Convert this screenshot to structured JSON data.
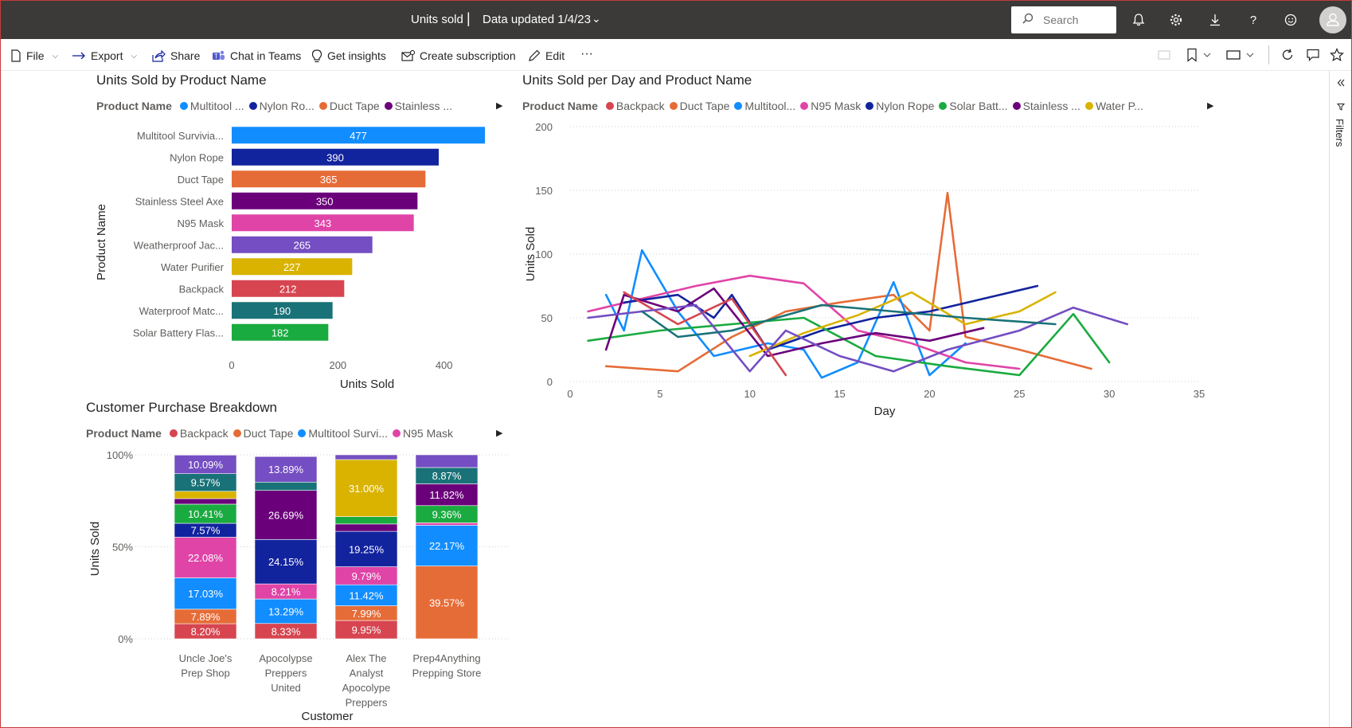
{
  "header": {
    "title": "Units sold",
    "separator": "|",
    "data_updated": "Data updated 1/4/23",
    "search_placeholder": "Search"
  },
  "commandbar": {
    "file": "File",
    "export": "Export",
    "share": "Share",
    "chat": "Chat in Teams",
    "insights": "Get insights",
    "subscription": "Create subscription",
    "edit": "Edit",
    "more": "···"
  },
  "filters_label": "Filters",
  "colors": {
    "multitool": "#118DFF",
    "nylon": "#12239E",
    "duct": "#E66C37",
    "axe": "#6B007B",
    "n95": "#E044A7",
    "jacket": "#744EC2",
    "water": "#D9B300",
    "backpack": "#D64550",
    "matches": "#197278",
    "solar": "#1AAB40"
  },
  "bar_chart": {
    "title": "Units Sold by Product Name",
    "legend_title": "Product Name",
    "legend": [
      {
        "label": "Multitool ...",
        "color": "#118DFF"
      },
      {
        "label": "Nylon Ro...",
        "color": "#12239E"
      },
      {
        "label": "Duct Tape",
        "color": "#E66C37"
      },
      {
        "label": "Stainless ...",
        "color": "#6B007B"
      }
    ]
  },
  "line_chart": {
    "title": "Units Sold per Day and Product Name",
    "legend_title": "Product Name",
    "legend": [
      {
        "label": "Backpack",
        "color": "#D64550"
      },
      {
        "label": "Duct Tape",
        "color": "#E66C37"
      },
      {
        "label": "Multitool...",
        "color": "#118DFF"
      },
      {
        "label": "N95 Mask",
        "color": "#E044A7"
      },
      {
        "label": "Nylon Rope",
        "color": "#12239E"
      },
      {
        "label": "Solar Batt...",
        "color": "#1AAB40"
      },
      {
        "label": "Stainless ...",
        "color": "#6B007B"
      },
      {
        "label": "Water P...",
        "color": "#D9B300"
      }
    ]
  },
  "stack_chart": {
    "title": "Customer Purchase Breakdown",
    "legend_title": "Product Name",
    "legend": [
      {
        "label": "Backpack",
        "color": "#D64550"
      },
      {
        "label": "Duct Tape",
        "color": "#E66C37"
      },
      {
        "label": "Multitool Survi...",
        "color": "#118DFF"
      },
      {
        "label": "N95 Mask",
        "color": "#E044A7"
      }
    ]
  },
  "chart_data": [
    {
      "type": "bar",
      "orientation": "horizontal",
      "title": "Units Sold by Product Name",
      "xlabel": "Units Sold",
      "ylabel": "Product Name",
      "xlim": [
        0,
        480
      ],
      "xticks": [
        "0",
        "200",
        "400"
      ],
      "xtick_values": [
        0,
        200,
        400
      ],
      "categories": [
        "Multitool Survivia...",
        "Nylon Rope",
        "Duct Tape",
        "Stainless Steel Axe",
        "N95 Mask",
        "Weatherproof Jac...",
        "Water Purifier",
        "Backpack",
        "Waterproof Matc...",
        "Solar Battery Flas..."
      ],
      "values": [
        477,
        390,
        365,
        350,
        343,
        265,
        227,
        212,
        190,
        182
      ],
      "colors": [
        "#118DFF",
        "#12239E",
        "#E66C37",
        "#6B007B",
        "#E044A7",
        "#744EC2",
        "#D9B300",
        "#D64550",
        "#197278",
        "#1AAB40"
      ],
      "grid": false
    },
    {
      "type": "line",
      "title": "Units Sold per Day and Product Name",
      "xlabel": "Day",
      "ylabel": "Units Sold",
      "xlim": [
        0,
        35
      ],
      "ylim": [
        0,
        200
      ],
      "xticks": [
        "0",
        "5",
        "10",
        "15",
        "20",
        "25",
        "30",
        "35"
      ],
      "xtick_values": [
        0,
        5,
        10,
        15,
        20,
        25,
        30,
        35
      ],
      "yticks": [
        "0",
        "50",
        "100",
        "150",
        "200"
      ],
      "ytick_values": [
        0,
        50,
        100,
        150,
        200
      ],
      "grid": true,
      "series": [
        {
          "name": "Duct Tape",
          "color": "#E66C37",
          "x": [
            2,
            6,
            9,
            12,
            15,
            18,
            20,
            21,
            22,
            25,
            29
          ],
          "y": [
            12,
            8,
            35,
            55,
            62,
            68,
            40,
            148,
            35,
            25,
            10
          ]
        },
        {
          "name": "Multitool Survivia...",
          "color": "#118DFF",
          "x": [
            2,
            3,
            4,
            6,
            8,
            11,
            13,
            14,
            16,
            18,
            20,
            22
          ],
          "y": [
            68,
            40,
            103,
            55,
            20,
            30,
            25,
            3,
            15,
            78,
            5,
            30
          ]
        },
        {
          "name": "N95 Mask",
          "color": "#E044A7",
          "x": [
            1,
            4,
            7,
            10,
            13,
            16,
            19,
            22,
            25
          ],
          "y": [
            55,
            65,
            75,
            83,
            77,
            40,
            30,
            15,
            10
          ]
        },
        {
          "name": "Nylon Rope",
          "color": "#12239E",
          "x": [
            3,
            6,
            8,
            9,
            11,
            14,
            17,
            20,
            23,
            26
          ],
          "y": [
            62,
            68,
            50,
            68,
            25,
            40,
            50,
            55,
            65,
            75
          ]
        },
        {
          "name": "Solar Battery Flas...",
          "color": "#1AAB40",
          "x": [
            1,
            5,
            9,
            13,
            17,
            21,
            25,
            28,
            30
          ],
          "y": [
            32,
            40,
            45,
            50,
            20,
            12,
            5,
            53,
            15
          ]
        },
        {
          "name": "Stainless Steel Axe",
          "color": "#6B007B",
          "x": [
            2,
            3,
            6,
            8,
            11,
            14,
            17,
            20,
            23
          ],
          "y": [
            25,
            68,
            55,
            73,
            20,
            30,
            38,
            32,
            42
          ]
        },
        {
          "name": "Water Purifier",
          "color": "#D9B300",
          "x": [
            10,
            13,
            16,
            19,
            22,
            25,
            27
          ],
          "y": [
            20,
            38,
            52,
            70,
            45,
            55,
            70
          ]
        },
        {
          "name": "Backpack",
          "color": "#D64550",
          "x": [
            3,
            6,
            9,
            12
          ],
          "y": [
            70,
            45,
            65,
            5
          ]
        },
        {
          "name": "Weatherproof Jac...",
          "color": "#744EC2",
          "x": [
            1,
            4,
            7,
            10,
            12,
            15,
            18,
            21,
            25,
            28,
            31
          ],
          "y": [
            50,
            55,
            60,
            8,
            40,
            20,
            8,
            25,
            40,
            58,
            45
          ]
        },
        {
          "name": "Waterproof Matc...",
          "color": "#197278",
          "x": [
            4,
            6,
            9,
            14,
            18,
            22,
            27
          ],
          "y": [
            55,
            35,
            40,
            60,
            55,
            50,
            45
          ]
        }
      ]
    },
    {
      "type": "bar",
      "stacked": "percent",
      "title": "Customer Purchase Breakdown",
      "xlabel": "Customer",
      "ylabel": "Units Sold",
      "ylim": [
        0,
        100
      ],
      "yticks": [
        "0%",
        "50%",
        "100%"
      ],
      "ytick_values": [
        0,
        50,
        100
      ],
      "categories": [
        [
          "Uncle Joe's",
          "Prep Shop"
        ],
        [
          "Apocolypse",
          "Preppers",
          "United"
        ],
        [
          "Alex The",
          "Analyst",
          "Apocolype",
          "Preppers"
        ],
        [
          "Prep4Anything",
          "Prepping Store"
        ]
      ],
      "stacks": [
        [
          {
            "product": "Backpack",
            "color": "#D64550",
            "value": 8.2,
            "label": "8.20%"
          },
          {
            "product": "Duct Tape",
            "color": "#E66C37",
            "value": 7.89,
            "label": "7.89%"
          },
          {
            "product": "Multitool",
            "color": "#118DFF",
            "value": 17.03,
            "label": "17.03%"
          },
          {
            "product": "N95 Mask",
            "color": "#E044A7",
            "value": 22.08,
            "label": "22.08%"
          },
          {
            "product": "Nylon Rope",
            "color": "#12239E",
            "value": 7.57,
            "label": "7.57%"
          },
          {
            "product": "Solar Battery",
            "color": "#1AAB40",
            "value": 10.41,
            "label": "10.41%"
          },
          {
            "product": "Stainless Steel Axe",
            "color": "#6B007B",
            "value": 3.0,
            "label": ""
          },
          {
            "product": "Water Purifier",
            "color": "#D9B300",
            "value": 4.0,
            "label": ""
          },
          {
            "product": "Waterproof Matches",
            "color": "#197278",
            "value": 9.57,
            "label": "9.57%"
          },
          {
            "product": "Weatherproof Jacket",
            "color": "#744EC2",
            "value": 10.09,
            "label": "10.09%"
          }
        ],
        [
          {
            "product": "Backpack",
            "color": "#D64550",
            "value": 8.33,
            "label": "8.33%"
          },
          {
            "product": "Multitool",
            "color": "#118DFF",
            "value": 13.29,
            "label": "13.29%"
          },
          {
            "product": "N95 Mask",
            "color": "#E044A7",
            "value": 8.21,
            "label": "8.21%"
          },
          {
            "product": "Nylon Rope",
            "color": "#12239E",
            "value": 24.15,
            "label": "24.15%"
          },
          {
            "product": "Stainless Steel Axe",
            "color": "#6B007B",
            "value": 26.69,
            "label": "26.69%"
          },
          {
            "product": "Waterproof Matches",
            "color": "#197278",
            "value": 4.5,
            "label": ""
          },
          {
            "product": "Weatherproof Jacket",
            "color": "#744EC2",
            "value": 13.89,
            "label": "13.89%"
          }
        ],
        [
          {
            "product": "Backpack",
            "color": "#D64550",
            "value": 9.95,
            "label": "9.95%"
          },
          {
            "product": "Duct Tape",
            "color": "#E66C37",
            "value": 7.99,
            "label": "7.99%"
          },
          {
            "product": "Multitool",
            "color": "#118DFF",
            "value": 11.42,
            "label": "11.42%"
          },
          {
            "product": "N95 Mask",
            "color": "#E044A7",
            "value": 9.79,
            "label": "9.79%"
          },
          {
            "product": "Nylon Rope",
            "color": "#12239E",
            "value": 19.25,
            "label": "19.25%"
          },
          {
            "product": "Stainless Steel Axe",
            "color": "#6B007B",
            "value": 4.0,
            "label": ""
          },
          {
            "product": "Solar Battery",
            "color": "#1AAB40",
            "value": 4.0,
            "label": ""
          },
          {
            "product": "Water Purifier",
            "color": "#D9B300",
            "value": 31.0,
            "label": "31.00%"
          },
          {
            "product": "Weatherproof Jacket",
            "color": "#744EC2",
            "value": 2.6,
            "label": ""
          }
        ],
        [
          {
            "product": "Duct Tape",
            "color": "#E66C37",
            "value": 39.57,
            "label": "39.57%"
          },
          {
            "product": "Multitool",
            "color": "#118DFF",
            "value": 22.17,
            "label": "22.17%"
          },
          {
            "product": "N95 Mask",
            "color": "#E044A7",
            "value": 1.3,
            "label": ""
          },
          {
            "product": "Solar Battery",
            "color": "#1AAB40",
            "value": 9.36,
            "label": "9.36%"
          },
          {
            "product": "Stainless Steel Axe",
            "color": "#6B007B",
            "value": 11.82,
            "label": "11.82%"
          },
          {
            "product": "Waterproof Matches",
            "color": "#197278",
            "value": 8.87,
            "label": "8.87%"
          },
          {
            "product": "Weatherproof Jacket",
            "color": "#744EC2",
            "value": 6.91,
            "label": ""
          }
        ]
      ]
    }
  ]
}
